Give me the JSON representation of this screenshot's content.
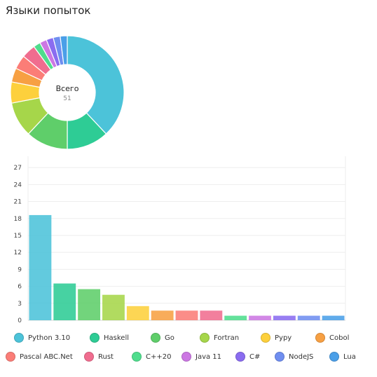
{
  "title": "Языки попыток",
  "donut": {
    "center_label": "Всего",
    "center_value": "51"
  },
  "chart_data": [
    {
      "type": "pie",
      "title": "",
      "categories": [
        "Python 3.10",
        "Haskell",
        "Go",
        "Fortran",
        "Pypy",
        "Cobol",
        "Pascal ABC.Net",
        "Rust",
        "C++20",
        "Java 11",
        "C#",
        "NodeJS",
        "Lua"
      ],
      "values": [
        19,
        6,
        6,
        5,
        3,
        2,
        2,
        2,
        1,
        1,
        1,
        1,
        1
      ],
      "total": 51
    },
    {
      "type": "bar",
      "title": "",
      "xlabel": "",
      "ylabel": "",
      "categories": [
        "Python 3.10",
        "Haskell",
        "Go",
        "Fortran",
        "Pypy",
        "Cobol",
        "Pascal ABC.Net",
        "Rust",
        "C++20",
        "Java 11",
        "C#",
        "NodeJS",
        "Lua"
      ],
      "values": [
        18.6,
        6.5,
        5.5,
        4.5,
        2.5,
        1.7,
        1.7,
        1.7,
        0.8,
        0.8,
        0.8,
        0.8,
        0.8
      ],
      "ylim": [
        0,
        29
      ],
      "yticks": [
        0,
        3,
        6,
        9,
        12,
        15,
        18,
        21,
        24,
        27
      ],
      "grid": true,
      "legend": "bottom"
    }
  ],
  "colors": [
    "#4cc3d9",
    "#2ecc95",
    "#5fce6a",
    "#a6d64a",
    "#fdd03c",
    "#f7a043",
    "#fb7d77",
    "#f06d8f",
    "#4fdd8d",
    "#cc77e3",
    "#8a6cf0",
    "#6f8ef0",
    "#4a9fe8"
  ],
  "legend": {
    "items": [
      "Python 3.10",
      "Haskell",
      "Go",
      "Fortran",
      "Pypy",
      "Cobol",
      "Pascal ABC.Net",
      "Rust",
      "C++20",
      "Java 11",
      "C#",
      "NodeJS",
      "Lua"
    ]
  }
}
